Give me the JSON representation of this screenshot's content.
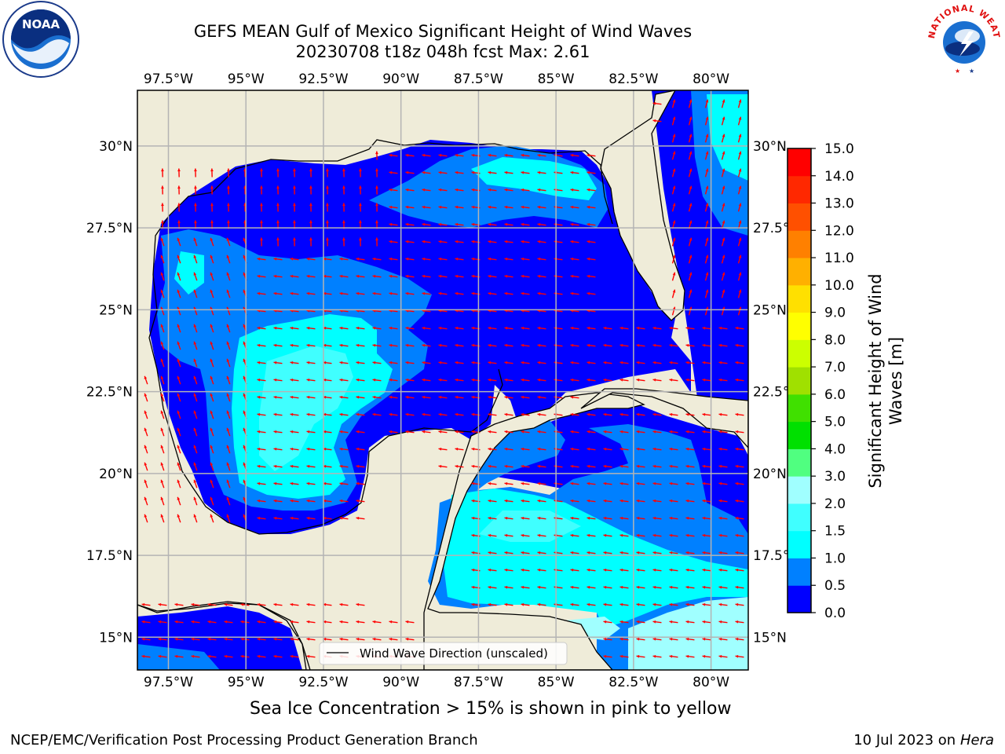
{
  "header": {
    "title_line1": "GEFS MEAN Gulf of Mexico Significant Height of Wind Waves",
    "title_line2": "20230708 t18z 048h fcst   Max: 2.61"
  },
  "caption": "Sea Ice Concentration > 15% is shown in pink to yellow",
  "footer": {
    "left": "NCEP/EMC/Verification Post Processing Product Generation Branch",
    "right_date": "10 Jul 2023 on",
    "right_host": "Hera"
  },
  "logos": {
    "noaa_text": "NOAA",
    "nws_text": "NATIONAL WEATHER SERVICE"
  },
  "chart_data": {
    "type": "heatmap",
    "title": "GEFS MEAN Gulf of Mexico Significant Height of Wind Waves",
    "subtitle": "20230708 t18z 048h fcst   Max: 2.61",
    "max_value": 2.61,
    "lon_range": [
      -98.5,
      -78.8
    ],
    "lat_range": [
      14.0,
      31.7
    ],
    "lon_ticks": [
      "97.5°W",
      "95°W",
      "92.5°W",
      "90°W",
      "87.5°W",
      "85°W",
      "82.5°W",
      "80°W"
    ],
    "lon_tick_values": [
      -97.5,
      -95,
      -92.5,
      -90,
      -87.5,
      -85,
      -82.5,
      -80
    ],
    "lat_ticks": [
      "15°N",
      "17.5°N",
      "20°N",
      "22.5°N",
      "25°N",
      "27.5°N",
      "30°N"
    ],
    "lat_tick_values": [
      15,
      17.5,
      20,
      22.5,
      25,
      27.5,
      30
    ],
    "grid": true,
    "legend": {
      "label": "Wind Wave Direction (unscaled)",
      "placement": "bottom-center"
    },
    "colorbar": {
      "label": "Significant Height of Wind Waves [m]",
      "label_line1": "Significant Height of Wind",
      "label_line2": "Waves [m]",
      "placement": "right",
      "ticks": [
        "0.0",
        "0.5",
        "1.0",
        "1.5",
        "2.0",
        "3.0",
        "4.0",
        "5.0",
        "6.0",
        "7.0",
        "8.0",
        "9.0",
        "10.0",
        "11.0",
        "12.0",
        "13.0",
        "14.0",
        "15.0"
      ],
      "colors": [
        "#0000ff",
        "#0080ff",
        "#00ffff",
        "#40ffff",
        "#a0ffff",
        "#50ff80",
        "#00e000",
        "#40e000",
        "#a0e000",
        "#ccff00",
        "#ffff00",
        "#ffe000",
        "#ffb000",
        "#ff8000",
        "#ff5000",
        "#ff2800",
        "#ff0000"
      ]
    },
    "colors": {
      "land": "#efecd9",
      "arrow": "#ff0000",
      "grid": "#b4b4b4",
      "coast": "#000000"
    }
  }
}
